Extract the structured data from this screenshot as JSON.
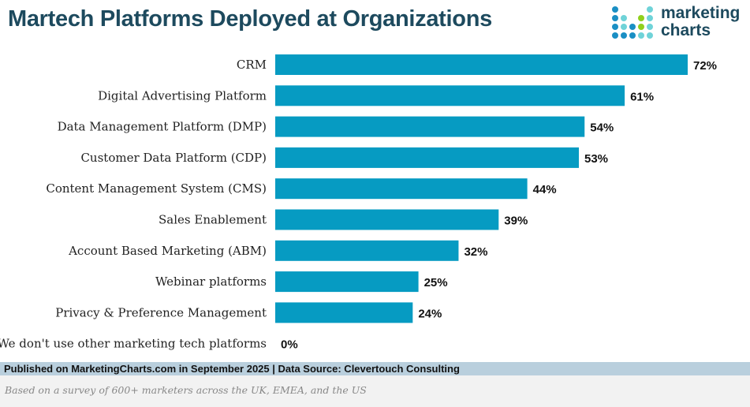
{
  "chart_data": {
    "type": "bar",
    "orientation": "horizontal",
    "title": "Martech Platforms Deployed at Organizations",
    "categories": [
      "CRM",
      "Digital Advertising Platform",
      "Data Management Platform (DMP)",
      "Customer Data Platform (CDP)",
      "Content Management System (CMS)",
      "Sales Enablement",
      "Account Based Marketing (ABM)",
      "Webinar platforms",
      "Privacy & Preference Management",
      "We don't use other marketing tech platforms"
    ],
    "values": [
      72,
      61,
      54,
      53,
      44,
      39,
      32,
      25,
      24,
      0
    ],
    "value_labels": [
      "72%",
      "61%",
      "54%",
      "53%",
      "44%",
      "39%",
      "32%",
      "25%",
      "24%",
      "0%"
    ],
    "xlim": [
      0,
      72
    ],
    "grid": false,
    "bar_color": "#069bc2"
  },
  "logo": {
    "line1": "marketing",
    "line2": "charts"
  },
  "footer": {
    "published": "Published on MarketingCharts.com in September 2025 | Data Source: Clevertouch Consulting",
    "note": "Based on a survey of 600+ marketers across the UK, EMEA, and the US"
  }
}
